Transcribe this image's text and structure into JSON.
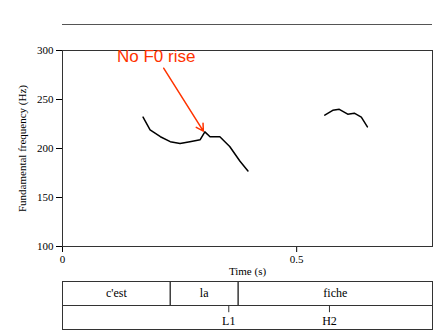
{
  "chart_data": {
    "type": "line",
    "y_label": "Fundamental frequency (Hz)",
    "x_label": "Time (s)",
    "xlim": [
      0,
      0.79
    ],
    "xticks": [
      0,
      0.5
    ],
    "ylim": [
      100,
      300
    ],
    "yticks": [
      100,
      150,
      200,
      250,
      300
    ],
    "grid": false,
    "series": [
      {
        "color": "#000000",
        "x": [
          0.172,
          0.187,
          0.209,
          0.23,
          0.251,
          0.272,
          0.294,
          0.304,
          0.315,
          0.336,
          0.357,
          0.379,
          0.396
        ],
        "values": [
          232,
          219,
          212,
          207,
          205,
          207,
          209,
          217,
          212,
          212,
          202,
          187,
          177
        ]
      },
      {
        "color": "#000000",
        "x": [
          0.56,
          0.577,
          0.591,
          0.609,
          0.623,
          0.638,
          0.651
        ],
        "values": [
          234,
          239,
          240,
          235,
          236,
          232,
          222
        ]
      }
    ],
    "annotations": [
      {
        "text": "No F0 rise",
        "color": "#ff3300",
        "x": 0.2,
        "y": 294,
        "arrow_x": 0.303,
        "arrow_y": 216
      }
    ],
    "tiers": [
      {
        "intervals": [
          {
            "label": "c'est",
            "start": 0,
            "end": 0.23
          },
          {
            "label": "la",
            "start": 0.23,
            "end": 0.375
          },
          {
            "label": "fiche",
            "start": 0.375,
            "end": 0.79
          }
        ]
      },
      {
        "points": [
          {
            "label": "L1",
            "time": 0.355
          },
          {
            "label": "H2",
            "time": 0.57
          }
        ]
      }
    ]
  }
}
